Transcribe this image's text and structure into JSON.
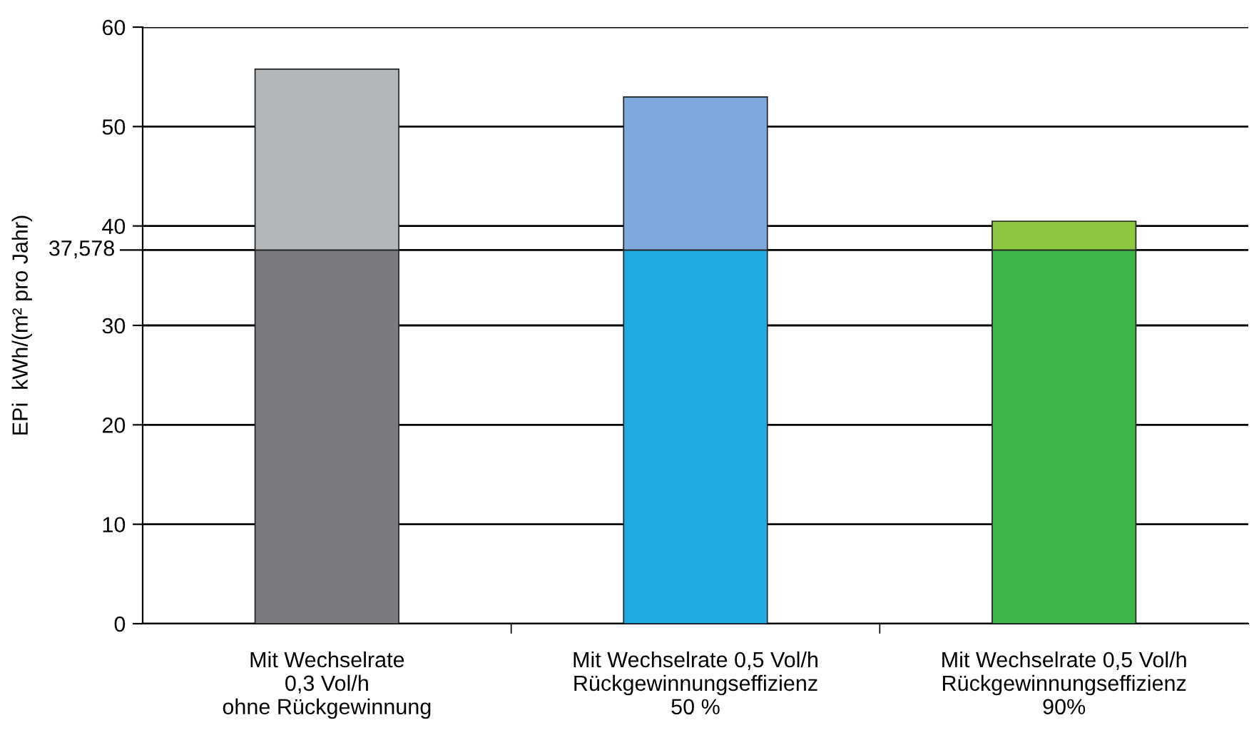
{
  "chart_data": {
    "type": "bar",
    "stacked": true,
    "ylabel": "EPi  kWh/(m² pro Jahr)",
    "categories": [
      "Mit Wechselrate\n0,3 Vol/h\nohne Rückgewinnung",
      "Mit Wechselrate 0,5 Vol/h\nRückgewinnungseffizienz\n50 %",
      "Mit Wechselrate 0,5 Vol/h\nRückgewinnungseffizienz\n90%"
    ],
    "series": [
      {
        "colors": [
          "#7b7a7f",
          "#1eaae3",
          "#3cb54a"
        ],
        "values": [
          37.578,
          37.578,
          37.578
        ]
      },
      {
        "colors": [
          "#b4b7ba",
          "#7ea9dc",
          "#8dc63f"
        ],
        "values": [
          18.2,
          15.4,
          2.9
        ]
      }
    ],
    "ylim": [
      0,
      60
    ],
    "yticks": [
      0,
      10,
      20,
      30,
      40,
      50,
      60
    ],
    "grid": "y",
    "ref_lines": [
      {
        "axis": "y",
        "value": 37.578,
        "label": "37,578",
        "color": "#000000"
      }
    ]
  }
}
